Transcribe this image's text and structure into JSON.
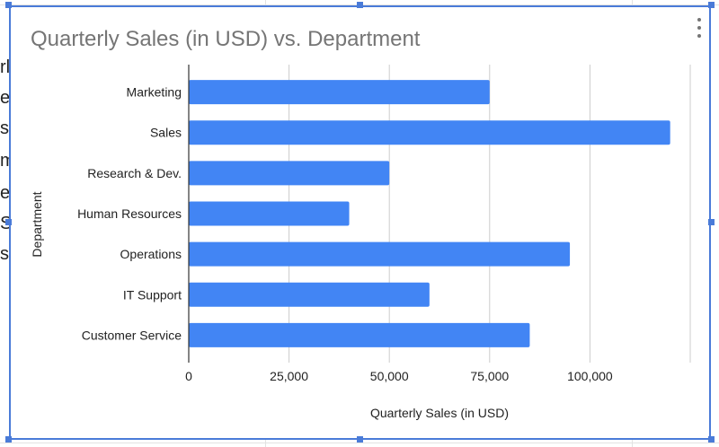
{
  "colors": {
    "bar": "#4285f4",
    "frame": "#4a7bd8",
    "grid": "#cccccc",
    "axis": "#333333",
    "title": "#757575"
  },
  "menu": {
    "icon": "more-vert-icon"
  },
  "sheet": {
    "cell_fragments": [
      "rl",
      "e",
      "se",
      "m",
      "e",
      "S",
      "st"
    ]
  },
  "chart_data": {
    "type": "bar",
    "orientation": "horizontal",
    "title": "Quarterly Sales (in USD) vs. Department",
    "xlabel": "Quarterly Sales (in USD)",
    "ylabel": "Department",
    "categories": [
      "Marketing",
      "Sales",
      "Research & Dev.",
      "Human Resources",
      "Operations",
      "IT Support",
      "Customer Service"
    ],
    "values": [
      75000,
      120000,
      50000,
      40000,
      95000,
      60000,
      85000
    ],
    "xlim": [
      0,
      125000
    ],
    "xticks": [
      0,
      25000,
      50000,
      75000,
      100000
    ],
    "xtick_labels": [
      "0",
      "25,000",
      "50,000",
      "75,000",
      "100,000"
    ],
    "grid": true,
    "legend": "none"
  }
}
